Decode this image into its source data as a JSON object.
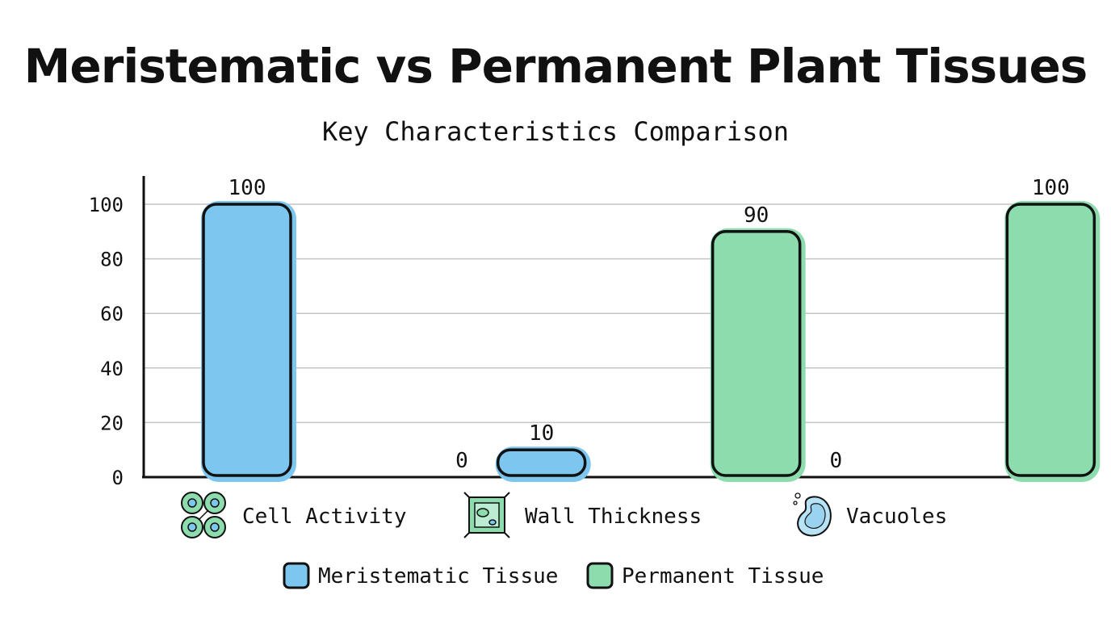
{
  "title": "Meristematic vs Permanent Plant Tissues",
  "subtitle": "Key Characteristics Comparison",
  "chart_data": {
    "type": "bar",
    "categories": [
      "Cell Activity",
      "Wall Thickness",
      "Vacuoles"
    ],
    "category_icons": [
      "dividing-cells-icon",
      "plant-cell-wall-icon",
      "vacuole-icon"
    ],
    "series": [
      {
        "name": "Meristematic Tissue",
        "color": "#7cc6ef",
        "values": [
          100,
          10,
          0
        ]
      },
      {
        "name": "Permanent Tissue",
        "color": "#8cdcae",
        "values": [
          0,
          90,
          100
        ]
      }
    ],
    "ylim": [
      0,
      100
    ],
    "yticks": [
      0,
      20,
      40,
      60,
      80,
      100
    ],
    "grid": true,
    "legend_position": "bottom-center",
    "xlabel": "",
    "ylabel": ""
  }
}
